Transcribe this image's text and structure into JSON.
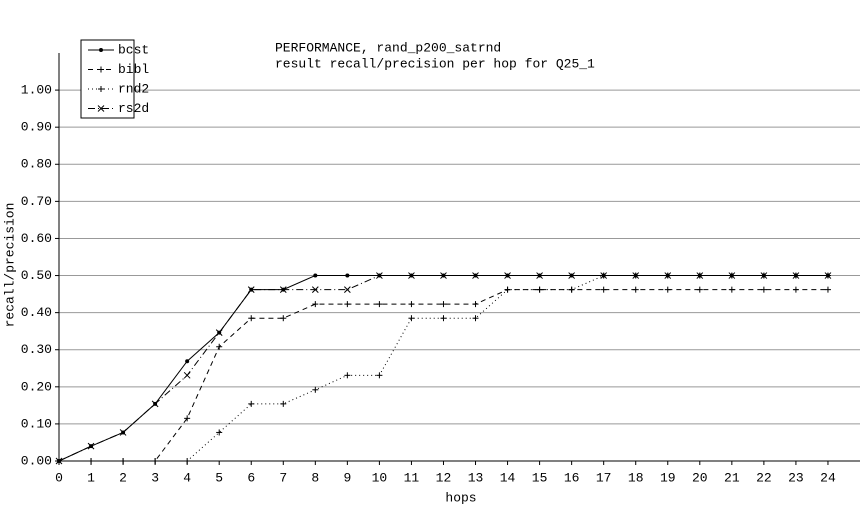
{
  "chart_data": {
    "type": "line",
    "title": [
      "PERFORMANCE, rand_p200_satrnd",
      "result recall/precision per hop for Q25_1"
    ],
    "xlabel": "hops",
    "ylabel": "recall/precision",
    "x": [
      0,
      1,
      2,
      3,
      4,
      5,
      6,
      7,
      8,
      9,
      10,
      11,
      12,
      13,
      14,
      15,
      16,
      17,
      18,
      19,
      20,
      21,
      22,
      23,
      24
    ],
    "xlim": [
      0,
      25
    ],
    "xticks": [
      0,
      1,
      2,
      3,
      4,
      5,
      6,
      7,
      8,
      9,
      10,
      11,
      12,
      13,
      14,
      15,
      16,
      17,
      18,
      19,
      20,
      21,
      22,
      23,
      24
    ],
    "ylim": [
      0,
      1.1
    ],
    "yticks": [
      {
        "value": 0,
        "label": "0.00"
      },
      {
        "value": 0.1,
        "label": "0.10"
      },
      {
        "value": 0.2,
        "label": "0.20"
      },
      {
        "value": 0.3,
        "label": "0.30"
      },
      {
        "value": 0.4,
        "label": "0.40"
      },
      {
        "value": 0.5,
        "label": "0.50"
      },
      {
        "value": 0.6,
        "label": "0.60"
      },
      {
        "value": 0.7,
        "label": "0.70"
      },
      {
        "value": 0.8,
        "label": "0.80"
      },
      {
        "value": 0.9,
        "label": "0.90"
      },
      {
        "value": 1.0,
        "label": "1.00"
      }
    ],
    "grid": true,
    "legend": "top-left",
    "series": [
      {
        "name": "bcst",
        "color": "#000000",
        "line_style": "solid",
        "marker": "dot",
        "values": [
          0,
          0.04,
          0.077,
          0.154,
          0.269,
          0.346,
          0.462,
          0.462,
          0.5,
          0.5,
          0.5,
          0.5,
          0.5,
          0.5,
          0.5,
          0.5,
          0.5,
          0.5,
          0.5,
          0.5,
          0.5,
          0.5,
          0.5,
          0.5,
          0.5
        ]
      },
      {
        "name": "bibl",
        "color": "#000000",
        "line_style": "dashed",
        "marker": "plus",
        "values": [
          0,
          0,
          0,
          0,
          0.115,
          0.308,
          0.385,
          0.385,
          0.423,
          0.423,
          0.423,
          0.423,
          0.423,
          0.423,
          0.462,
          0.462,
          0.462,
          0.462,
          0.462,
          0.462,
          0.462,
          0.462,
          0.462,
          0.462,
          0.462
        ]
      },
      {
        "name": "rnd2",
        "color": "#000000",
        "line_style": "dotted",
        "marker": "plus",
        "values": [
          0,
          0,
          0,
          0,
          0,
          0.077,
          0.154,
          0.154,
          0.192,
          0.231,
          0.231,
          0.385,
          0.385,
          0.385,
          0.462,
          0.462,
          0.462,
          0.5,
          0.5,
          0.5,
          0.5,
          0.5,
          0.5,
          0.5,
          0.5
        ]
      },
      {
        "name": "rs2d",
        "color": "#000000",
        "line_style": "dashdot",
        "marker": "x",
        "values": [
          0,
          0.04,
          0.077,
          0.154,
          0.231,
          0.346,
          0.462,
          0.462,
          0.462,
          0.462,
          0.5,
          0.5,
          0.5,
          0.5,
          0.5,
          0.5,
          0.5,
          0.5,
          0.5,
          0.5,
          0.5,
          0.5,
          0.5,
          0.5,
          0.5
        ]
      }
    ]
  }
}
